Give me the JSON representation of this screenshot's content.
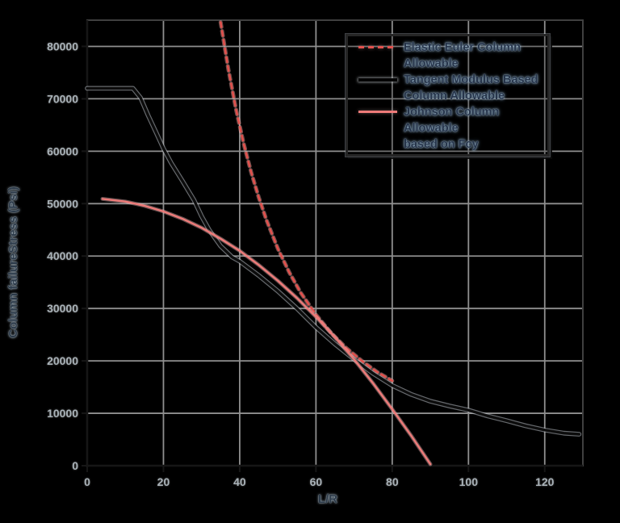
{
  "colors": {
    "background": "#000000",
    "gridline": "#8f8f8f",
    "plot_border": "#3f3f3f",
    "axis_line": "#161616",
    "tick_label": "#a9b2b8",
    "title_text": "#2c3a49",
    "legend_text": "#26344a",
    "euler_red": "#e3514d",
    "tangent_black": "#0c0c0c",
    "johnson_pink": "#ee7b79"
  },
  "chart_data": {
    "type": "line",
    "title": "",
    "xlabel": "L/R",
    "ylabel": "Column failureStress (Psi)",
    "xlim": [
      0,
      130
    ],
    "ylim": [
      0,
      85000
    ],
    "x_ticks": [
      0,
      20,
      40,
      60,
      80,
      100,
      120
    ],
    "y_ticks": [
      0,
      10000,
      20000,
      30000,
      40000,
      50000,
      60000,
      70000,
      80000
    ],
    "grid": true,
    "legend_position": "upper-right-inside",
    "series": [
      {
        "name": "Elastic Euler Column Allowable",
        "style": "dashed",
        "color": "#e3514d",
        "width": 2.6,
        "halo": "rgba(250,175,170,0.45)",
        "points": [
          [
            35,
            84600
          ],
          [
            37,
            75700
          ],
          [
            39,
            68100
          ],
          [
            41,
            61600
          ],
          [
            43,
            56000
          ],
          [
            45,
            51200
          ],
          [
            47,
            46900
          ],
          [
            50,
            41400
          ],
          [
            53,
            36900
          ],
          [
            56,
            33000
          ],
          [
            60,
            28800
          ],
          [
            64,
            25300
          ],
          [
            68,
            22400
          ],
          [
            72,
            20000
          ],
          [
            76,
            17900
          ],
          [
            80,
            16200
          ]
        ]
      },
      {
        "name": "Tangent Modulus Based Column Allowable",
        "style": "solid",
        "color": "#0c0c0c",
        "width": 3.4,
        "halo": "rgba(185,192,198,0.55)",
        "points": [
          [
            0,
            72000
          ],
          [
            12,
            72000
          ],
          [
            14,
            70200
          ],
          [
            16,
            66800
          ],
          [
            18,
            63700
          ],
          [
            20,
            60500
          ],
          [
            22,
            57800
          ],
          [
            25,
            54300
          ],
          [
            28,
            50700
          ],
          [
            30,
            47600
          ],
          [
            32,
            45000
          ],
          [
            35,
            41900
          ],
          [
            38,
            39800
          ],
          [
            40,
            39000
          ],
          [
            45,
            36300
          ],
          [
            50,
            33300
          ],
          [
            55,
            30000
          ],
          [
            60,
            26400
          ],
          [
            65,
            23200
          ],
          [
            70,
            20300
          ],
          [
            75,
            17600
          ],
          [
            80,
            15300
          ],
          [
            85,
            13600
          ],
          [
            90,
            12300
          ],
          [
            95,
            11400
          ],
          [
            100,
            10600
          ],
          [
            105,
            9500
          ],
          [
            110,
            8600
          ],
          [
            115,
            7600
          ],
          [
            120,
            6800
          ],
          [
            125,
            6200
          ],
          [
            129,
            6000
          ]
        ]
      },
      {
        "name": "Johnson Column Allowable based on Fcy",
        "style": "solid",
        "color": "#ee7b79",
        "width": 2.4,
        "halo": "rgba(250,195,195,0.4)",
        "points": [
          [
            4,
            50900
          ],
          [
            10,
            50400
          ],
          [
            15,
            49600
          ],
          [
            20,
            48500
          ],
          [
            25,
            47100
          ],
          [
            30,
            45400
          ],
          [
            35,
            43300
          ],
          [
            40,
            41000
          ],
          [
            45,
            38300
          ],
          [
            50,
            35300
          ],
          [
            55,
            32000
          ],
          [
            60,
            28400
          ],
          [
            65,
            24500
          ],
          [
            70,
            20300
          ],
          [
            75,
            15700
          ],
          [
            80,
            10800
          ],
          [
            85,
            5700
          ],
          [
            90,
            300
          ]
        ]
      }
    ]
  },
  "legend": {
    "entries": [
      {
        "line1": "Elastic Euler Column",
        "line2": "Allowable",
        "swatch": "dashed-red"
      },
      {
        "line1": "Tangent Modulus Based",
        "line2": "Column Allowable",
        "swatch": "solid-black"
      },
      {
        "line1": "Johnson Column Allowable",
        "line2": "based on Fcy",
        "swatch": "solid-pink"
      }
    ]
  }
}
